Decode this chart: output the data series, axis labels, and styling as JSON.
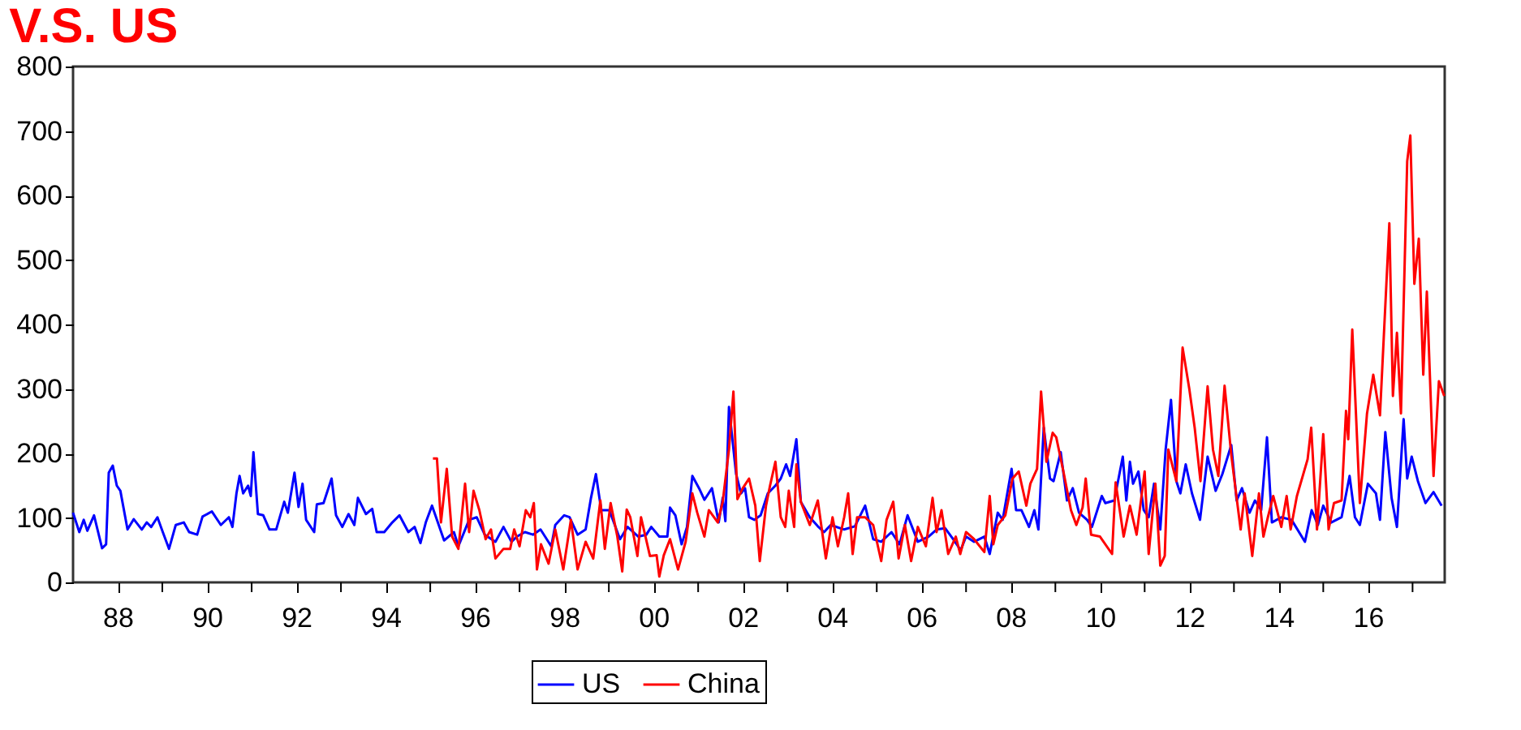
{
  "chart_data": {
    "type": "line",
    "title": "V.S. US",
    "xlim": [
      1987,
      2017.72
    ],
    "ylim": [
      0,
      800
    ],
    "yticks": [
      0,
      100,
      200,
      300,
      400,
      500,
      600,
      700,
      800
    ],
    "xticks": [
      {
        "value": 1988,
        "label": "88"
      },
      {
        "value": 1989,
        "label": null
      },
      {
        "value": 1990,
        "label": "90"
      },
      {
        "value": 1991,
        "label": null
      },
      {
        "value": 1992,
        "label": "92"
      },
      {
        "value": 1993,
        "label": null
      },
      {
        "value": 1994,
        "label": "94"
      },
      {
        "value": 1995,
        "label": null
      },
      {
        "value": 1996,
        "label": "96"
      },
      {
        "value": 1997,
        "label": null
      },
      {
        "value": 1998,
        "label": "98"
      },
      {
        "value": 1999,
        "label": null
      },
      {
        "value": 2000,
        "label": "00"
      },
      {
        "value": 2001,
        "label": null
      },
      {
        "value": 2002,
        "label": "02"
      },
      {
        "value": 2003,
        "label": null
      },
      {
        "value": 2004,
        "label": "04"
      },
      {
        "value": 2005,
        "label": null
      },
      {
        "value": 2006,
        "label": "06"
      },
      {
        "value": 2007,
        "label": null
      },
      {
        "value": 2008,
        "label": "08"
      },
      {
        "value": 2009,
        "label": null
      },
      {
        "value": 2010,
        "label": "10"
      },
      {
        "value": 2011,
        "label": null
      },
      {
        "value": 2012,
        "label": "12"
      },
      {
        "value": 2013,
        "label": null
      },
      {
        "value": 2014,
        "label": "14"
      },
      {
        "value": 2015,
        "label": null
      },
      {
        "value": 2016,
        "label": "16"
      },
      {
        "value": 2017,
        "label": null
      }
    ],
    "grid": false,
    "legend": "bottom",
    "marker": "none",
    "line_style": "solid",
    "series": [
      {
        "name": "US",
        "color": "#0000ff",
        "x": [
          1987.0,
          1987.14,
          1987.24,
          1987.32,
          1987.47,
          1987.65,
          1987.74,
          1987.8,
          1987.89,
          1987.98,
          1988.06,
          1988.22,
          1988.36,
          1988.54,
          1988.65,
          1988.75,
          1988.89,
          1989.01,
          1989.15,
          1989.3,
          1989.48,
          1989.6,
          1989.78,
          1989.9,
          1990.11,
          1990.31,
          1990.49,
          1990.57,
          1990.66,
          1990.73,
          1990.81,
          1990.92,
          1990.98,
          1991.04,
          1991.14,
          1991.26,
          1991.4,
          1991.55,
          1991.73,
          1991.81,
          1991.96,
          1992.05,
          1992.14,
          1992.22,
          1992.4,
          1992.46,
          1992.61,
          1992.79,
          1992.89,
          1993.03,
          1993.17,
          1993.3,
          1993.38,
          1993.56,
          1993.7,
          1993.8,
          1993.97,
          1994.15,
          1994.31,
          1994.51,
          1994.65,
          1994.78,
          1994.9,
          1995.04,
          1995.31,
          1995.53,
          1995.63,
          1995.87,
          1996.04,
          1996.22,
          1996.46,
          1996.64,
          1996.82,
          1996.94,
          1997.12,
          1997.3,
          1997.47,
          1997.71,
          1997.8,
          1998.0,
          1998.12,
          1998.3,
          1998.48,
          1998.6,
          1998.71,
          1998.83,
          1999.01,
          1999.25,
          1999.42,
          1999.66,
          1999.84,
          1999.95,
          2000.13,
          2000.31,
          2000.37,
          2000.49,
          2000.63,
          2000.75,
          2000.87,
          2001.02,
          2001.14,
          2001.31,
          2001.46,
          2001.55,
          2001.61,
          2001.69,
          2001.85,
          2001.96,
          2002.05,
          2002.14,
          2002.26,
          2002.4,
          2002.56,
          2002.73,
          2002.85,
          2002.97,
          2003.06,
          2003.2,
          2003.3,
          2003.5,
          2003.68,
          2003.82,
          2003.97,
          2004.27,
          2004.51,
          2004.74,
          2004.92,
          2005.1,
          2005.33,
          2005.51,
          2005.69,
          2005.92,
          2006.16,
          2006.34,
          2006.53,
          2006.71,
          2006.88,
          2007.0,
          2007.18,
          2007.41,
          2007.53,
          2007.71,
          2007.82,
          2008.02,
          2008.12,
          2008.24,
          2008.41,
          2008.53,
          2008.62,
          2008.74,
          2008.88,
          2008.96,
          2009.12,
          2009.26,
          2009.39,
          2009.53,
          2009.71,
          2009.82,
          2010.04,
          2010.12,
          2010.32,
          2010.51,
          2010.59,
          2010.67,
          2010.74,
          2010.86,
          2010.98,
          2011.09,
          2011.21,
          2011.35,
          2011.47,
          2011.59,
          2011.71,
          2011.8,
          2011.92,
          2012.06,
          2012.24,
          2012.41,
          2012.59,
          2012.74,
          2012.94,
          2013.06,
          2013.18,
          2013.35,
          2013.47,
          2013.61,
          2013.74,
          2013.85,
          2014.06,
          2014.29,
          2014.59,
          2014.74,
          2014.88,
          2015.0,
          2015.18,
          2015.41,
          2015.59,
          2015.71,
          2015.82,
          2016.0,
          2016.18,
          2016.27,
          2016.39,
          2016.53,
          2016.65,
          2016.8,
          2016.88,
          2016.98,
          2017.12,
          2017.29,
          2017.47,
          2017.65
        ],
        "values": [
          108,
          78,
          97,
          80,
          104,
          53,
          59,
          170,
          181,
          150,
          142,
          82,
          98,
          82,
          93,
          86,
          101,
          78,
          52,
          89,
          93,
          78,
          74,
          102,
          110,
          89,
          101,
          86,
          138,
          165,
          138,
          150,
          134,
          202,
          106,
          104,
          82,
          82,
          125,
          108,
          170,
          117,
          153,
          97,
          78,
          121,
          123,
          161,
          104,
          86,
          106,
          89,
          131,
          106,
          114,
          78,
          78,
          93,
          104,
          78,
          86,
          61,
          93,
          119,
          65,
          78,
          56,
          97,
          101,
          74,
          63,
          86,
          63,
          71,
          78,
          74,
          82,
          56,
          89,
          104,
          101,
          74,
          82,
          131,
          168,
          112,
          112,
          67,
          86,
          71,
          74,
          86,
          71,
          71,
          116,
          104,
          59,
          86,
          165,
          146,
          128,
          146,
          93,
          131,
          95,
          272,
          168,
          138,
          146,
          101,
          97,
          104,
          138,
          150,
          161,
          183,
          165,
          222,
          125,
          101,
          87,
          78,
          89,
          82,
          87,
          119,
          67,
          63,
          78,
          59,
          104,
          63,
          71,
          82,
          84,
          67,
          50,
          71,
          63,
          71,
          44,
          108,
          97,
          176,
          112,
          112,
          86,
          112,
          82,
          240,
          161,
          157,
          202,
          127,
          146,
          108,
          97,
          86,
          134,
          123,
          127,
          195,
          127,
          187,
          153,
          172,
          112,
          101,
          153,
          82,
          206,
          283,
          157,
          138,
          183,
          138,
          97,
          195,
          142,
          168,
          213,
          127,
          146,
          108,
          127,
          112,
          225,
          93,
          101,
          97,
          63,
          112,
          89,
          119,
          93,
          101,
          165,
          101,
          89,
          153,
          138,
          97,
          233,
          131,
          86,
          253,
          161,
          195,
          157,
          123,
          140,
          119
        ]
      },
      {
        "name": "China",
        "color": "#ff0000",
        "x": [
          1995.06,
          1995.15,
          1995.24,
          1995.37,
          1995.49,
          1995.63,
          1995.78,
          1995.87,
          1995.97,
          1996.1,
          1996.24,
          1996.36,
          1996.46,
          1996.64,
          1996.79,
          1996.88,
          1997.0,
          1997.14,
          1997.24,
          1997.32,
          1997.39,
          1997.48,
          1997.65,
          1997.8,
          1997.98,
          1998.15,
          1998.3,
          1998.48,
          1998.65,
          1998.81,
          1998.91,
          1999.04,
          1999.19,
          1999.3,
          1999.4,
          1999.48,
          1999.64,
          1999.72,
          1999.92,
          2000.07,
          2000.13,
          2000.23,
          2000.37,
          2000.55,
          2000.72,
          2000.87,
          2000.98,
          2001.14,
          2001.24,
          2001.44,
          2001.55,
          2001.69,
          2001.79,
          2001.88,
          2002.0,
          2002.14,
          2002.28,
          2002.38,
          2002.52,
          2002.61,
          2002.73,
          2002.85,
          2002.95,
          2003.03,
          2003.15,
          2003.2,
          2003.3,
          2003.5,
          2003.68,
          2003.86,
          2004.01,
          2004.13,
          2004.27,
          2004.36,
          2004.46,
          2004.56,
          2004.74,
          2004.92,
          2005.1,
          2005.22,
          2005.37,
          2005.49,
          2005.63,
          2005.77,
          2005.92,
          2006.1,
          2006.25,
          2006.34,
          2006.45,
          2006.6,
          2006.77,
          2006.87,
          2007.0,
          2007.18,
          2007.41,
          2007.53,
          2007.61,
          2007.71,
          2007.88,
          2008.04,
          2008.18,
          2008.35,
          2008.44,
          2008.59,
          2008.68,
          2008.8,
          2008.94,
          2009.02,
          2009.18,
          2009.35,
          2009.47,
          2009.61,
          2009.68,
          2009.8,
          2010.0,
          2010.27,
          2010.35,
          2010.53,
          2010.67,
          2010.82,
          2011.0,
          2011.09,
          2011.24,
          2011.35,
          2011.45,
          2011.53,
          2011.71,
          2011.85,
          2012.0,
          2012.12,
          2012.25,
          2012.41,
          2012.53,
          2012.65,
          2012.79,
          2012.94,
          2013.06,
          2013.15,
          2013.24,
          2013.41,
          2013.56,
          2013.66,
          2013.76,
          2013.88,
          2014.06,
          2014.18,
          2014.27,
          2014.41,
          2014.65,
          2014.73,
          2014.86,
          2015.0,
          2015.12,
          2015.24,
          2015.41,
          2015.51,
          2015.56,
          2015.65,
          2015.82,
          2015.98,
          2016.12,
          2016.27,
          2016.48,
          2016.56,
          2016.65,
          2016.74,
          2016.88,
          2016.95,
          2017.04,
          2017.14,
          2017.24,
          2017.32,
          2017.47,
          2017.59,
          2017.71
        ],
        "values": [
          192,
          192,
          93,
          176,
          71,
          52,
          153,
          78,
          142,
          112,
          67,
          82,
          37,
          52,
          52,
          82,
          56,
          112,
          101,
          123,
          20,
          59,
          29,
          82,
          20,
          97,
          20,
          63,
          37,
          127,
          52,
          123,
          71,
          17,
          113,
          101,
          41,
          101,
          41,
          42,
          9,
          42,
          67,
          20,
          63,
          138,
          108,
          71,
          112,
          93,
          125,
          206,
          296,
          129,
          146,
          161,
          119,
          33,
          119,
          150,
          187,
          101,
          86,
          142,
          86,
          183,
          125,
          89,
          127,
          37,
          101,
          56,
          101,
          138,
          44,
          101,
          101,
          89,
          33,
          97,
          125,
          37,
          89,
          33,
          86,
          56,
          131,
          78,
          112,
          44,
          71,
          44,
          78,
          67,
          47,
          134,
          59,
          89,
          104,
          161,
          172,
          119,
          153,
          176,
          296,
          187,
          232,
          225,
          172,
          112,
          89,
          116,
          161,
          74,
          71,
          44,
          155,
          71,
          119,
          74,
          172,
          44,
          153,
          26,
          41,
          206,
          157,
          364,
          300,
          240,
          157,
          304,
          206,
          165,
          305,
          198,
          131,
          82,
          138,
          41,
          138,
          71,
          101,
          134,
          86,
          134,
          82,
          134,
          191,
          240,
          82,
          230,
          82,
          123,
          127,
          266,
          222,
          392,
          123,
          262,
          322,
          259,
          557,
          289,
          387,
          262,
          653,
          693,
          463,
          533,
          322,
          451,
          165,
          312,
          289
        ]
      }
    ]
  }
}
